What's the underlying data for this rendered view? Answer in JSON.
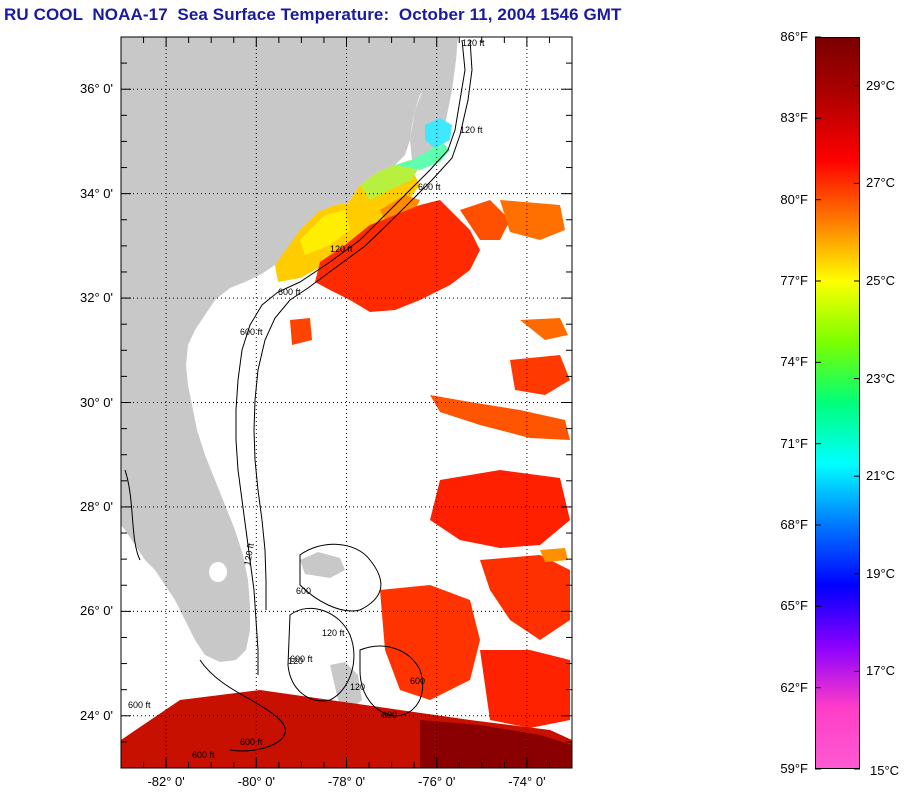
{
  "title": "RU COOL  NOAA-17  Sea Surface Temperature:  October 11, 2004 1546 GMT",
  "map": {
    "lat_labels": [
      "36° 0'",
      "34° 0'",
      "32° 0'",
      "30° 0'",
      "28° 0'",
      "26° 0'",
      "24° 0'"
    ],
    "lat_values": [
      36,
      34,
      32,
      30,
      28,
      26,
      24
    ],
    "lon_labels": [
      "-82° 0'",
      "-80° 0'",
      "-78° 0'",
      "-76° 0'",
      "-74° 0'"
    ],
    "lon_values": [
      -82,
      -80,
      -78,
      -76,
      -74
    ],
    "lat_range": [
      23,
      37
    ],
    "lon_range": [
      -83,
      -73
    ],
    "contour_labels": [
      "120 ft",
      "120 ft",
      "600 ft",
      "120 ft",
      "600 ft",
      "600 ft",
      "120 ft",
      "120 ft",
      "600 ft",
      "600",
      "120",
      "600 ft",
      "600 ft",
      "600 ft",
      "600",
      "600",
      "120"
    ],
    "colors": {
      "land": "#c8c8c8",
      "grid": "#000000",
      "contour": "#000000"
    }
  },
  "colorbar": {
    "fahrenheit_labels": [
      "86°F",
      "83°F",
      "80°F",
      "77°F",
      "74°F",
      "71°F",
      "68°F",
      "65°F",
      "62°F",
      "59°F"
    ],
    "celsius_labels": [
      "29°C",
      "27°C",
      "25°C",
      "23°C",
      "21°C",
      "19°C",
      "17°C",
      "15°C"
    ],
    "celsius_values": [
      29,
      27,
      25,
      23,
      21,
      19,
      17,
      15
    ],
    "range_f": [
      59,
      86
    ],
    "gradient_stops": [
      "#7a0000",
      "#b20000",
      "#ff0000",
      "#ff7a00",
      "#ffff00",
      "#7aff00",
      "#00ff7a",
      "#00ffff",
      "#0078ff",
      "#0000ff",
      "#8a00ff",
      "#ff3dc8",
      "#ff5ad2"
    ]
  }
}
